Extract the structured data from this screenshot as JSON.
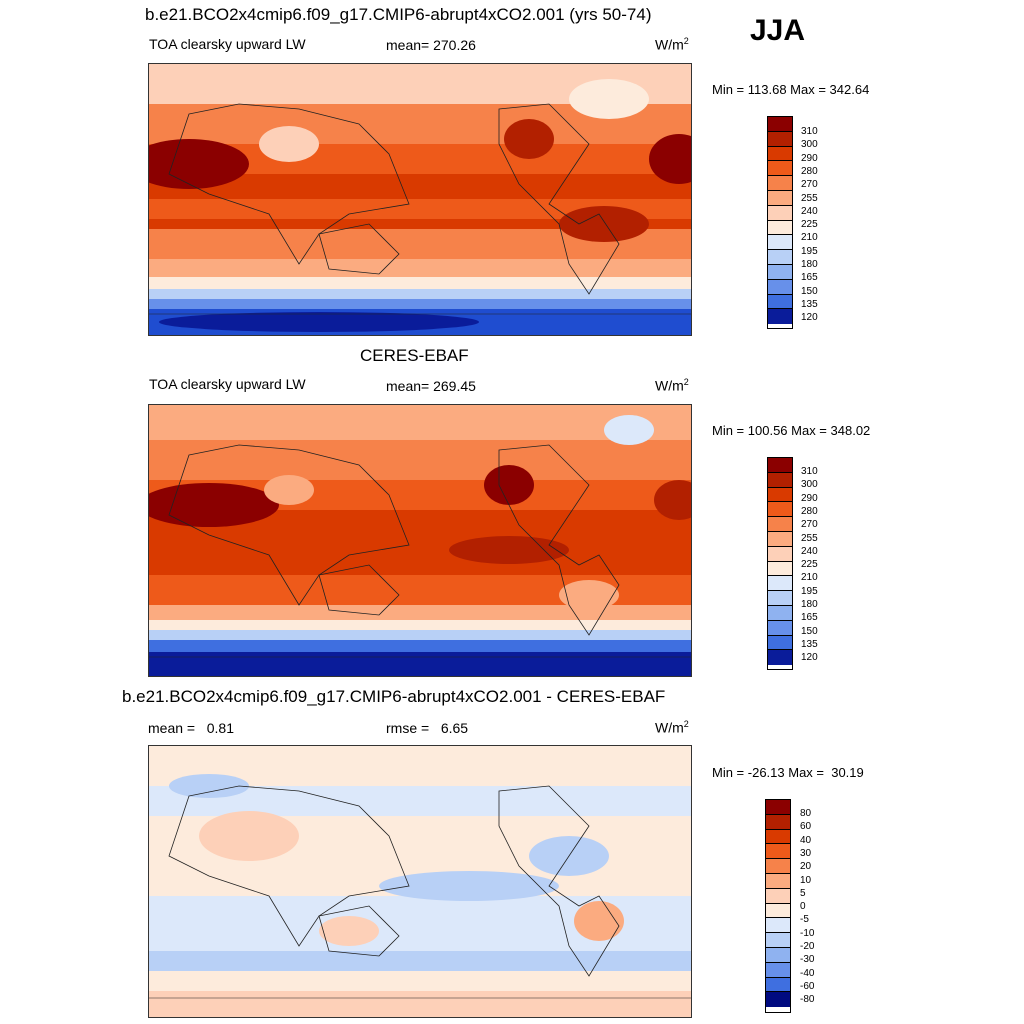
{
  "season": "JJA",
  "units": "W/m",
  "units_exp": "2",
  "panels": [
    {
      "title": "b.e21.BCO2x4cmip6.f09_g17.CMIP6-abrupt4xCO2.001 (yrs 50-74)",
      "variable": "TOA clearsky upward LW",
      "stat_text": "mean= 270.26",
      "minmax": "Min = 113.68 Max = 342.64",
      "colorbar": [
        "310",
        "300",
        "290",
        "280",
        "270",
        "255",
        "240",
        "225",
        "210",
        "195",
        "180",
        "165",
        "150",
        "135",
        "120"
      ]
    },
    {
      "title": "CERES-EBAF",
      "variable": "TOA clearsky upward LW",
      "stat_text": "mean= 269.45",
      "minmax": "Min = 100.56 Max = 348.02",
      "colorbar": [
        "310",
        "300",
        "290",
        "280",
        "270",
        "255",
        "240",
        "225",
        "210",
        "195",
        "180",
        "165",
        "150",
        "135",
        "120"
      ]
    },
    {
      "title": "b.e21.BCO2x4cmip6.f09_g17.CMIP6-abrupt4xCO2.001 - CERES-EBAF",
      "stat_left": "mean =   0.81",
      "stat_mid": "rmse =   6.65",
      "minmax": "Min = -26.13 Max =  30.19",
      "colorbar": [
        "80",
        "60",
        "40",
        "30",
        "20",
        "10",
        "5",
        "0",
        "-5",
        "-10",
        "-20",
        "-30",
        "-40",
        "-60",
        "-80"
      ]
    }
  ],
  "colors": {
    "abs_scale": [
      "#8b0000",
      "#b22000",
      "#d93a00",
      "#ee5a1a",
      "#f6824a",
      "#fbab80",
      "#fdd0b8",
      "#fdebdc",
      "#dce8fa",
      "#b8d0f6",
      "#8fb2f0",
      "#6790ea",
      "#3f6fe0",
      "#1f4dd0",
      "#0a1c9a",
      "#000a80"
    ],
    "diff_scale": [
      "#8b0000",
      "#b22000",
      "#d93a00",
      "#ee5a1a",
      "#f6824a",
      "#fbab80",
      "#fdd0b8",
      "#fdebdc",
      "#ffffff",
      "#dce8fa",
      "#b8d0f6",
      "#8fb2f0",
      "#6790ea",
      "#3f6fe0",
      "#1f4dd0",
      "#000a80"
    ]
  }
}
